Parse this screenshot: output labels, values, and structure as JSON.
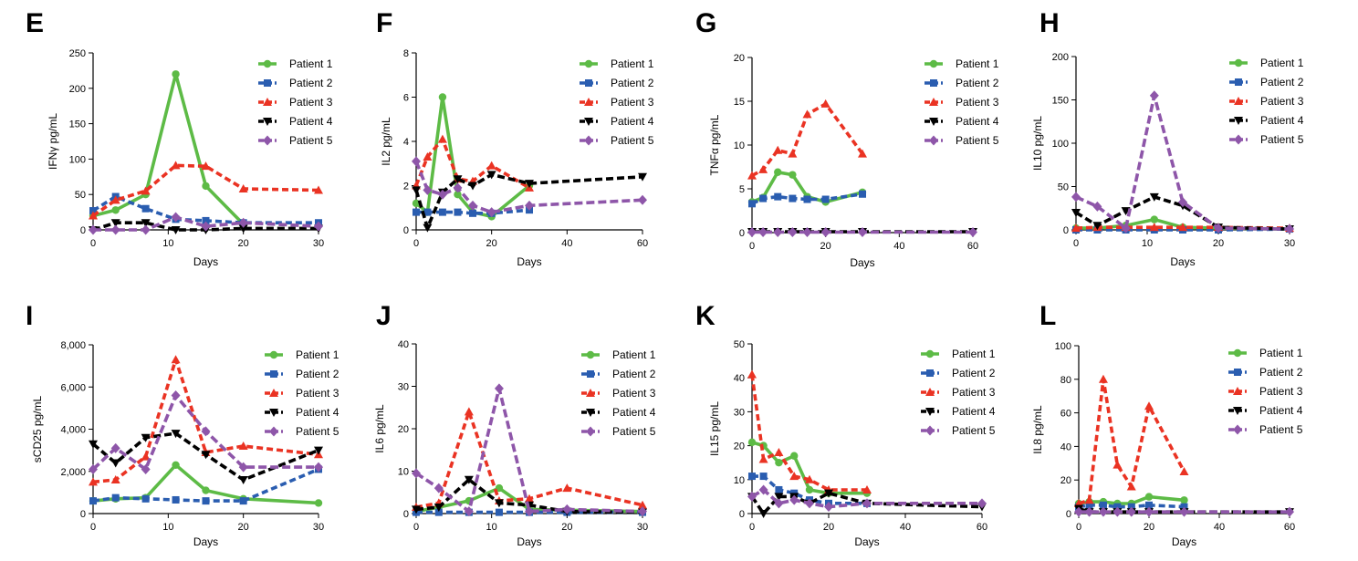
{
  "colors": {
    "Patient 1": "#5dbb46",
    "Patient 2": "#2a5db0",
    "Patient 3": "#ea3323",
    "Patient 4": "#000000",
    "Patient 5": "#8e56a9"
  },
  "chart_data": [
    {
      "panel": "E",
      "type": "line",
      "xlabel": "Days",
      "ylabel": "IFNγ pg/mL",
      "xlim": [
        0,
        30
      ],
      "xticks": [
        "0",
        "10",
        "20",
        "30"
      ],
      "ylim": [
        0,
        250
      ],
      "yticks": [
        "0",
        "50",
        "100",
        "150",
        "200",
        "250"
      ],
      "legend": [
        "Patient 1",
        "Patient 2",
        "Patient 3",
        "Patient 4",
        "Patient 5"
      ],
      "series": [
        {
          "name": "Patient 1",
          "x": [
            0,
            3,
            7,
            11,
            15,
            20
          ],
          "y": [
            20,
            28,
            50,
            220,
            62,
            8
          ]
        },
        {
          "name": "Patient 2",
          "x": [
            0,
            3,
            7,
            11,
            15,
            20,
            30
          ],
          "y": [
            27,
            47,
            30,
            15,
            13,
            10,
            10
          ]
        },
        {
          "name": "Patient 3",
          "x": [
            0,
            3,
            7,
            11,
            15,
            20,
            30
          ],
          "y": [
            20,
            42,
            55,
            91,
            90,
            58,
            56
          ]
        },
        {
          "name": "Patient 4",
          "x": [
            0,
            3,
            7,
            11,
            15,
            20,
            30
          ],
          "y": [
            0,
            10,
            10,
            0,
            0,
            2,
            2
          ]
        },
        {
          "name": "Patient 5",
          "x": [
            0,
            3,
            7,
            11,
            15,
            20,
            30
          ],
          "y": [
            0,
            0,
            0,
            18,
            5,
            10,
            5
          ]
        }
      ]
    },
    {
      "panel": "F",
      "type": "line",
      "xlabel": "Days",
      "ylabel": "IL2 pg/mL",
      "xlim": [
        0,
        60
      ],
      "xticks": [
        "0",
        "20",
        "40",
        "60"
      ],
      "ylim": [
        0,
        8
      ],
      "yticks": [
        "0",
        "2",
        "4",
        "6",
        "8"
      ],
      "legend": [
        "Patient 1",
        "Patient 2",
        "Patient 3",
        "Patient 4",
        "Patient 5"
      ],
      "series": [
        {
          "name": "Patient 1",
          "x": [
            0,
            3,
            7,
            11,
            15,
            20,
            30
          ],
          "y": [
            1.2,
            0.8,
            6.0,
            1.6,
            0.8,
            0.6,
            2.0
          ]
        },
        {
          "name": "Patient 2",
          "x": [
            0,
            3,
            7,
            11,
            15,
            20,
            30
          ],
          "y": [
            0.8,
            0.8,
            0.8,
            0.8,
            0.75,
            0.75,
            0.9
          ]
        },
        {
          "name": "Patient 3",
          "x": [
            0,
            3,
            7,
            11,
            15,
            20,
            30
          ],
          "y": [
            2.0,
            3.3,
            4.1,
            2.3,
            2.2,
            2.9,
            1.9
          ]
        },
        {
          "name": "Patient 4",
          "x": [
            0,
            3,
            7,
            11,
            15,
            20,
            30,
            60
          ],
          "y": [
            1.8,
            0.1,
            1.7,
            2.3,
            2.0,
            2.5,
            2.1,
            2.4
          ]
        },
        {
          "name": "Patient 5",
          "x": [
            0,
            3,
            7,
            11,
            15,
            20,
            30,
            60
          ],
          "y": [
            3.1,
            1.8,
            1.6,
            1.9,
            1.1,
            0.8,
            1.1,
            1.35
          ]
        }
      ]
    },
    {
      "panel": "G",
      "type": "line",
      "xlabel": "Days",
      "ylabel": "TNFα pg/mL",
      "xlim": [
        0,
        60
      ],
      "xticks": [
        "0",
        "20",
        "40",
        "60"
      ],
      "ylim": [
        0,
        20
      ],
      "yticks": [
        "0",
        "5",
        "10",
        "15",
        "20"
      ],
      "legend": [
        "Patient 1",
        "Patient 2",
        "Patient 3",
        "Patient 4",
        "Patient 5"
      ],
      "series": [
        {
          "name": "Patient 1",
          "x": [
            0,
            3,
            7,
            11,
            15,
            20,
            30
          ],
          "y": [
            3.5,
            4.0,
            6.9,
            6.6,
            4.1,
            3.5,
            4.6
          ]
        },
        {
          "name": "Patient 2",
          "x": [
            0,
            3,
            7,
            11,
            15,
            20,
            30
          ],
          "y": [
            3.3,
            3.9,
            4.1,
            3.9,
            3.8,
            3.8,
            4.4
          ]
        },
        {
          "name": "Patient 3",
          "x": [
            0,
            3,
            7,
            11,
            15,
            20,
            30
          ],
          "y": [
            6.5,
            7.2,
            9.4,
            9.0,
            13.5,
            14.7,
            9.0
          ]
        },
        {
          "name": "Patient 4",
          "x": [
            0,
            3,
            7,
            11,
            15,
            20,
            30,
            60
          ],
          "y": [
            0.1,
            0.1,
            0.1,
            0.1,
            0.1,
            0.1,
            0.1,
            0.1
          ]
        },
        {
          "name": "Patient 5",
          "x": [
            0,
            3,
            7,
            11,
            15,
            20,
            30,
            60
          ],
          "y": [
            0.05,
            0.05,
            0.05,
            0.05,
            0.05,
            0.05,
            0.05,
            0.05
          ]
        }
      ]
    },
    {
      "panel": "H",
      "type": "line",
      "xlabel": "Days",
      "ylabel": "IL10 pg/mL",
      "xlim": [
        0,
        30
      ],
      "xticks": [
        "0",
        "10",
        "20",
        "30"
      ],
      "ylim": [
        0,
        200
      ],
      "yticks": [
        "0",
        "50",
        "100",
        "150",
        "200"
      ],
      "legend": [
        "Patient 1",
        "Patient 2",
        "Patient 3",
        "Patient 4",
        "Patient 5"
      ],
      "series": [
        {
          "name": "Patient 1",
          "x": [
            0,
            3,
            7,
            11,
            15,
            20,
            30
          ],
          "y": [
            2,
            2,
            5,
            12,
            3,
            2,
            1
          ]
        },
        {
          "name": "Patient 2",
          "x": [
            0,
            3,
            7,
            11,
            15,
            20,
            30
          ],
          "y": [
            0,
            0,
            0,
            0,
            0,
            0,
            1
          ]
        },
        {
          "name": "Patient 3",
          "x": [
            0,
            3,
            7,
            11,
            15,
            20,
            30
          ],
          "y": [
            2,
            3,
            3,
            3,
            3,
            3,
            2
          ]
        },
        {
          "name": "Patient 4",
          "x": [
            0,
            3,
            7,
            11,
            15,
            20,
            30
          ],
          "y": [
            20,
            5,
            22,
            38,
            28,
            3,
            1
          ]
        },
        {
          "name": "Patient 5",
          "x": [
            0,
            3,
            7,
            11,
            15,
            20,
            30
          ],
          "y": [
            38,
            27,
            2,
            155,
            32,
            2,
            1
          ]
        }
      ]
    },
    {
      "panel": "I",
      "type": "line",
      "xlabel": "Days",
      "ylabel": "sCD25 pg/mL",
      "xlim": [
        0,
        30
      ],
      "xticks": [
        "0",
        "10",
        "20",
        "30"
      ],
      "ylim": [
        0,
        8000
      ],
      "yticks": [
        "0",
        "2,000",
        "4,000",
        "6,000",
        "8,000"
      ],
      "legend": [
        "Patient 1",
        "Patient 2",
        "Patient 3",
        "Patient 4",
        "Patient 5"
      ],
      "series": [
        {
          "name": "Patient 1",
          "x": [
            0,
            3,
            7,
            11,
            15,
            20,
            30
          ],
          "y": [
            600,
            700,
            750,
            2300,
            1100,
            700,
            500
          ]
        },
        {
          "name": "Patient 2",
          "x": [
            0,
            3,
            7,
            11,
            15,
            20,
            30
          ],
          "y": [
            600,
            750,
            700,
            650,
            600,
            600,
            2100
          ]
        },
        {
          "name": "Patient 3",
          "x": [
            0,
            3,
            7,
            11,
            15,
            20,
            30
          ],
          "y": [
            1500,
            1600,
            2700,
            7300,
            2900,
            3200,
            2800
          ]
        },
        {
          "name": "Patient 4",
          "x": [
            0,
            3,
            7,
            11,
            15,
            20,
            30
          ],
          "y": [
            3300,
            2400,
            3600,
            3800,
            2800,
            1600,
            3000
          ]
        },
        {
          "name": "Patient 5",
          "x": [
            0,
            3,
            7,
            11,
            15,
            20,
            30
          ],
          "y": [
            2100,
            3100,
            2100,
            5600,
            3900,
            2200,
            2200
          ]
        }
      ]
    },
    {
      "panel": "J",
      "type": "line",
      "xlabel": "Days",
      "ylabel": "IL6 pg/mL",
      "xlim": [
        0,
        30
      ],
      "xticks": [
        "0",
        "10",
        "20",
        "30"
      ],
      "ylim": [
        0,
        40
      ],
      "yticks": [
        "0",
        "10",
        "20",
        "30",
        "40"
      ],
      "legend": [
        "Patient 1",
        "Patient 2",
        "Patient 3",
        "Patient 4",
        "Patient 5"
      ],
      "series": [
        {
          "name": "Patient 1",
          "x": [
            0,
            3,
            7,
            11,
            15,
            20,
            30
          ],
          "y": [
            0.5,
            1.5,
            3.0,
            6.0,
            1.0,
            0.8,
            0.5
          ]
        },
        {
          "name": "Patient 2",
          "x": [
            0,
            3,
            7,
            11,
            15,
            20,
            30
          ],
          "y": [
            0.3,
            0.3,
            0.3,
            0.3,
            0.3,
            0.3,
            0.3
          ]
        },
        {
          "name": "Patient 3",
          "x": [
            0,
            3,
            7,
            11,
            15,
            20,
            30
          ],
          "y": [
            1.5,
            2.5,
            24.0,
            3.0,
            3.5,
            6.0,
            2.0
          ]
        },
        {
          "name": "Patient 4",
          "x": [
            0,
            3,
            7,
            11,
            15,
            20,
            30
          ],
          "y": [
            1.0,
            1.5,
            8.0,
            2.5,
            2.0,
            0.5,
            0.3
          ]
        },
        {
          "name": "Patient 5",
          "x": [
            0,
            3,
            7,
            11,
            15,
            20,
            30
          ],
          "y": [
            9.5,
            6.0,
            0.5,
            29.5,
            0.5,
            1.0,
            0.5
          ]
        }
      ]
    },
    {
      "panel": "K",
      "type": "line",
      "xlabel": "Days",
      "ylabel": "IL15 pg/mL",
      "xlim": [
        0,
        60
      ],
      "xticks": [
        "0",
        "20",
        "40",
        "60"
      ],
      "ylim": [
        0,
        50
      ],
      "yticks": [
        "0",
        "10",
        "20",
        "30",
        "40",
        "50"
      ],
      "legend": [
        "Patient 1",
        "Patient 2",
        "Patient 3",
        "Patient 4",
        "Patient 5"
      ],
      "series": [
        {
          "name": "Patient 1",
          "x": [
            0,
            3,
            7,
            11,
            15,
            20,
            30
          ],
          "y": [
            21,
            20,
            15,
            17,
            7,
            6,
            6
          ]
        },
        {
          "name": "Patient 2",
          "x": [
            0,
            3,
            7,
            11,
            15,
            20,
            30
          ],
          "y": [
            11,
            11,
            7,
            6,
            4,
            3,
            3
          ]
        },
        {
          "name": "Patient 3",
          "x": [
            0,
            3,
            7,
            11,
            15,
            20,
            30
          ],
          "y": [
            41,
            16,
            18,
            11,
            10,
            7,
            7
          ]
        },
        {
          "name": "Patient 4",
          "x": [
            0,
            3,
            7,
            11,
            15,
            20,
            30,
            60
          ],
          "y": [
            5,
            0,
            5,
            5,
            3,
            6,
            3,
            2
          ]
        },
        {
          "name": "Patient 5",
          "x": [
            0,
            3,
            7,
            11,
            15,
            20,
            30,
            60
          ],
          "y": [
            5,
            7,
            3,
            4,
            3,
            2,
            3,
            3
          ]
        }
      ]
    },
    {
      "panel": "L",
      "type": "line",
      "xlabel": "Days",
      "ylabel": "IL8 pg/mL",
      "xlim": [
        0,
        60
      ],
      "xticks": [
        "0",
        "20",
        "40",
        "60"
      ],
      "ylim": [
        0,
        100
      ],
      "yticks": [
        "0",
        "20",
        "40",
        "60",
        "80",
        "100"
      ],
      "legend": [
        "Patient 1",
        "Patient 2",
        "Patient 3",
        "Patient 4",
        "Patient 5"
      ],
      "series": [
        {
          "name": "Patient 1",
          "x": [
            0,
            3,
            7,
            11,
            15,
            20,
            30
          ],
          "y": [
            6,
            7,
            7,
            6,
            6,
            10,
            8
          ]
        },
        {
          "name": "Patient 2",
          "x": [
            0,
            3,
            7,
            11,
            15,
            20,
            30
          ],
          "y": [
            4,
            5,
            5,
            4,
            4,
            5,
            4
          ]
        },
        {
          "name": "Patient 3",
          "x": [
            0,
            3,
            7,
            11,
            15,
            20,
            30
          ],
          "y": [
            6,
            8,
            80,
            29,
            16,
            64,
            25
          ]
        },
        {
          "name": "Patient 4",
          "x": [
            0,
            3,
            7,
            11,
            15,
            20,
            30,
            60
          ],
          "y": [
            3,
            1,
            1,
            1,
            1,
            1,
            1,
            1
          ]
        },
        {
          "name": "Patient 5",
          "x": [
            0,
            3,
            7,
            11,
            15,
            20,
            30,
            60
          ],
          "y": [
            1,
            1,
            1,
            1,
            1,
            1,
            1,
            1
          ]
        }
      ]
    }
  ]
}
